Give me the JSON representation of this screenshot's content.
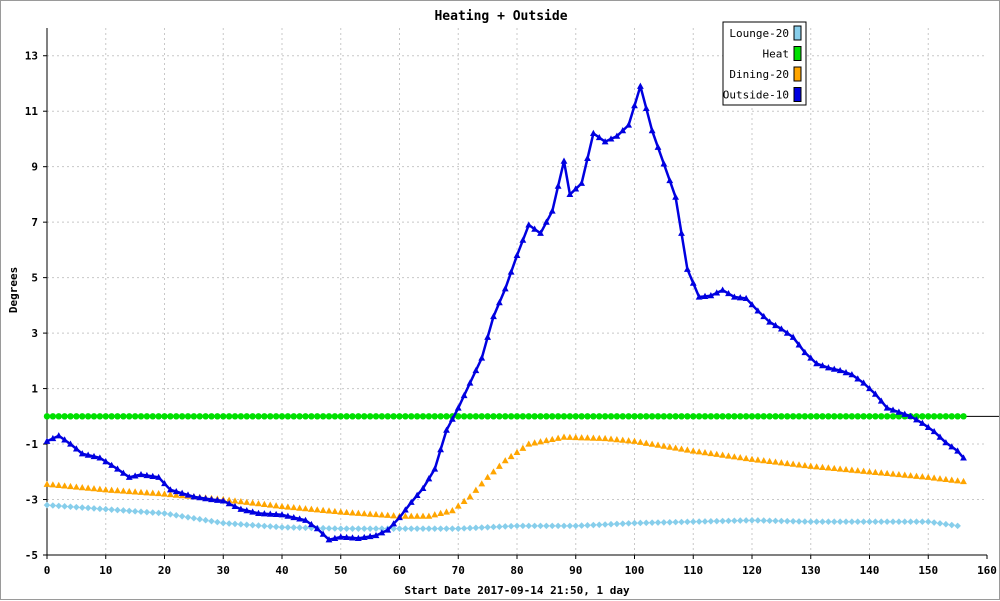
{
  "chart_data": {
    "type": "line",
    "title": "Heating + Outside",
    "xlabel": "Start Date 2017-09-14 21:50, 1 day",
    "ylabel": "Degrees",
    "xlim": [
      0,
      160
    ],
    "ylim": [
      -5,
      14
    ],
    "x_ticks": [
      0,
      10,
      20,
      30,
      40,
      50,
      60,
      70,
      80,
      90,
      100,
      110,
      120,
      130,
      140,
      150,
      160
    ],
    "y_ticks": [
      -5,
      -3,
      -1,
      1,
      3,
      5,
      7,
      9,
      11,
      13
    ],
    "grid": true,
    "legend_position": "top-right",
    "series": [
      {
        "name": "Lounge-20",
        "color": "#87ceeb",
        "marker": "diamond",
        "line": false,
        "keypoints": [
          [
            0,
            -3.2
          ],
          [
            10,
            -3.35
          ],
          [
            20,
            -3.5
          ],
          [
            30,
            -3.85
          ],
          [
            40,
            -4.0
          ],
          [
            50,
            -4.05
          ],
          [
            60,
            -4.05
          ],
          [
            70,
            -4.05
          ],
          [
            80,
            -3.95
          ],
          [
            90,
            -3.95
          ],
          [
            100,
            -3.85
          ],
          [
            110,
            -3.8
          ],
          [
            120,
            -3.75
          ],
          [
            130,
            -3.8
          ],
          [
            140,
            -3.8
          ],
          [
            150,
            -3.8
          ],
          [
            155,
            -3.95
          ]
        ]
      },
      {
        "name": "Heat",
        "color": "#00e000",
        "marker": "circle",
        "line": false,
        "keypoints": [
          [
            0,
            0
          ],
          [
            156,
            0
          ]
        ]
      },
      {
        "name": "Dining-20",
        "color": "#ffa500",
        "marker": "triangle",
        "line": false,
        "keypoints": [
          [
            0,
            -2.45
          ],
          [
            10,
            -2.65
          ],
          [
            20,
            -2.8
          ],
          [
            30,
            -3.0
          ],
          [
            40,
            -3.25
          ],
          [
            50,
            -3.45
          ],
          [
            60,
            -3.6
          ],
          [
            65,
            -3.6
          ],
          [
            69,
            -3.4
          ],
          [
            72,
            -2.9
          ],
          [
            75,
            -2.2
          ],
          [
            78,
            -1.6
          ],
          [
            82,
            -1.0
          ],
          [
            88,
            -0.75
          ],
          [
            95,
            -0.8
          ],
          [
            100,
            -0.9
          ],
          [
            110,
            -1.25
          ],
          [
            120,
            -1.55
          ],
          [
            130,
            -1.8
          ],
          [
            140,
            -2.0
          ],
          [
            150,
            -2.2
          ],
          [
            156,
            -2.35
          ]
        ]
      },
      {
        "name": "Outside-10",
        "color": "#0000e0",
        "marker": "triangle",
        "line": true,
        "keypoints": [
          [
            0,
            -0.9
          ],
          [
            2,
            -0.7
          ],
          [
            4,
            -1.0
          ],
          [
            6,
            -1.35
          ],
          [
            9,
            -1.5
          ],
          [
            12,
            -1.9
          ],
          [
            14,
            -2.2
          ],
          [
            16,
            -2.1
          ],
          [
            19,
            -2.2
          ],
          [
            21,
            -2.65
          ],
          [
            25,
            -2.9
          ],
          [
            28,
            -3.0
          ],
          [
            30,
            -3.05
          ],
          [
            33,
            -3.35
          ],
          [
            36,
            -3.5
          ],
          [
            40,
            -3.55
          ],
          [
            44,
            -3.75
          ],
          [
            46,
            -4.05
          ],
          [
            48,
            -4.45
          ],
          [
            50,
            -4.35
          ],
          [
            53,
            -4.4
          ],
          [
            56,
            -4.3
          ],
          [
            58,
            -4.1
          ],
          [
            60,
            -3.65
          ],
          [
            62,
            -3.1
          ],
          [
            64,
            -2.6
          ],
          [
            66,
            -1.9
          ],
          [
            68,
            -0.5
          ],
          [
            70,
            0.3
          ],
          [
            72,
            1.2
          ],
          [
            74,
            2.1
          ],
          [
            76,
            3.6
          ],
          [
            78,
            4.6
          ],
          [
            80,
            5.8
          ],
          [
            82,
            6.9
          ],
          [
            84,
            6.6
          ],
          [
            86,
            7.4
          ],
          [
            88,
            9.2
          ],
          [
            89,
            8.0
          ],
          [
            91,
            8.4
          ],
          [
            93,
            10.2
          ],
          [
            95,
            9.9
          ],
          [
            97,
            10.1
          ],
          [
            99,
            10.5
          ],
          [
            101,
            11.9
          ],
          [
            103,
            10.3
          ],
          [
            105,
            9.1
          ],
          [
            107,
            7.9
          ],
          [
            109,
            5.3
          ],
          [
            111,
            4.3
          ],
          [
            113,
            4.35
          ],
          [
            115,
            4.55
          ],
          [
            117,
            4.3
          ],
          [
            119,
            4.25
          ],
          [
            121,
            3.8
          ],
          [
            123,
            3.4
          ],
          [
            125,
            3.15
          ],
          [
            127,
            2.85
          ],
          [
            129,
            2.3
          ],
          [
            131,
            1.9
          ],
          [
            133,
            1.75
          ],
          [
            135,
            1.65
          ],
          [
            137,
            1.5
          ],
          [
            139,
            1.2
          ],
          [
            141,
            0.8
          ],
          [
            143,
            0.3
          ],
          [
            145,
            0.15
          ],
          [
            147,
            0.0
          ],
          [
            149,
            -0.25
          ],
          [
            151,
            -0.55
          ],
          [
            153,
            -0.95
          ],
          [
            155,
            -1.25
          ],
          [
            156,
            -1.5
          ]
        ]
      }
    ]
  }
}
